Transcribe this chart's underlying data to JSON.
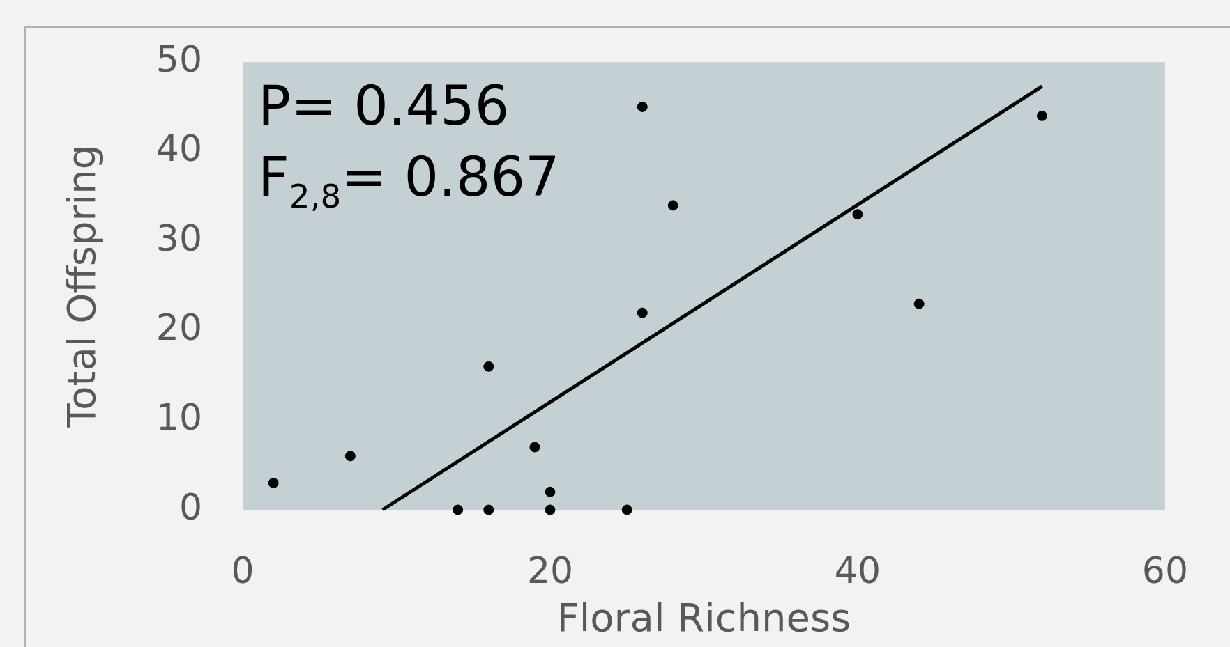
{
  "chart_data": {
    "type": "scatter",
    "xlabel": "Floral Richness",
    "ylabel": "Total Offspring",
    "annotations": [
      "P= 0.456",
      "F$_{2,8}$= 0.867"
    ],
    "xlim": [
      0,
      60
    ],
    "xticks": [
      0,
      20,
      40,
      60
    ],
    "ylim": [
      0,
      50
    ],
    "yticks": [
      0,
      10,
      20,
      30,
      40,
      50
    ],
    "marker": "circle",
    "series": [
      {
        "type": "scatter",
        "color": "#000000",
        "x": [
          2,
          7,
          14,
          16,
          16,
          19,
          20,
          20,
          25,
          26,
          26,
          28,
          40,
          44,
          52
        ],
        "values": [
          3,
          6,
          0,
          0,
          16,
          7,
          2,
          0,
          0,
          45,
          22,
          34,
          33,
          23,
          44
        ]
      },
      {
        "type": "line",
        "color": "#000000",
        "marker": "none",
        "x": [
          9.1,
          52
        ],
        "values": [
          0,
          47.3
        ]
      }
    ]
  }
}
